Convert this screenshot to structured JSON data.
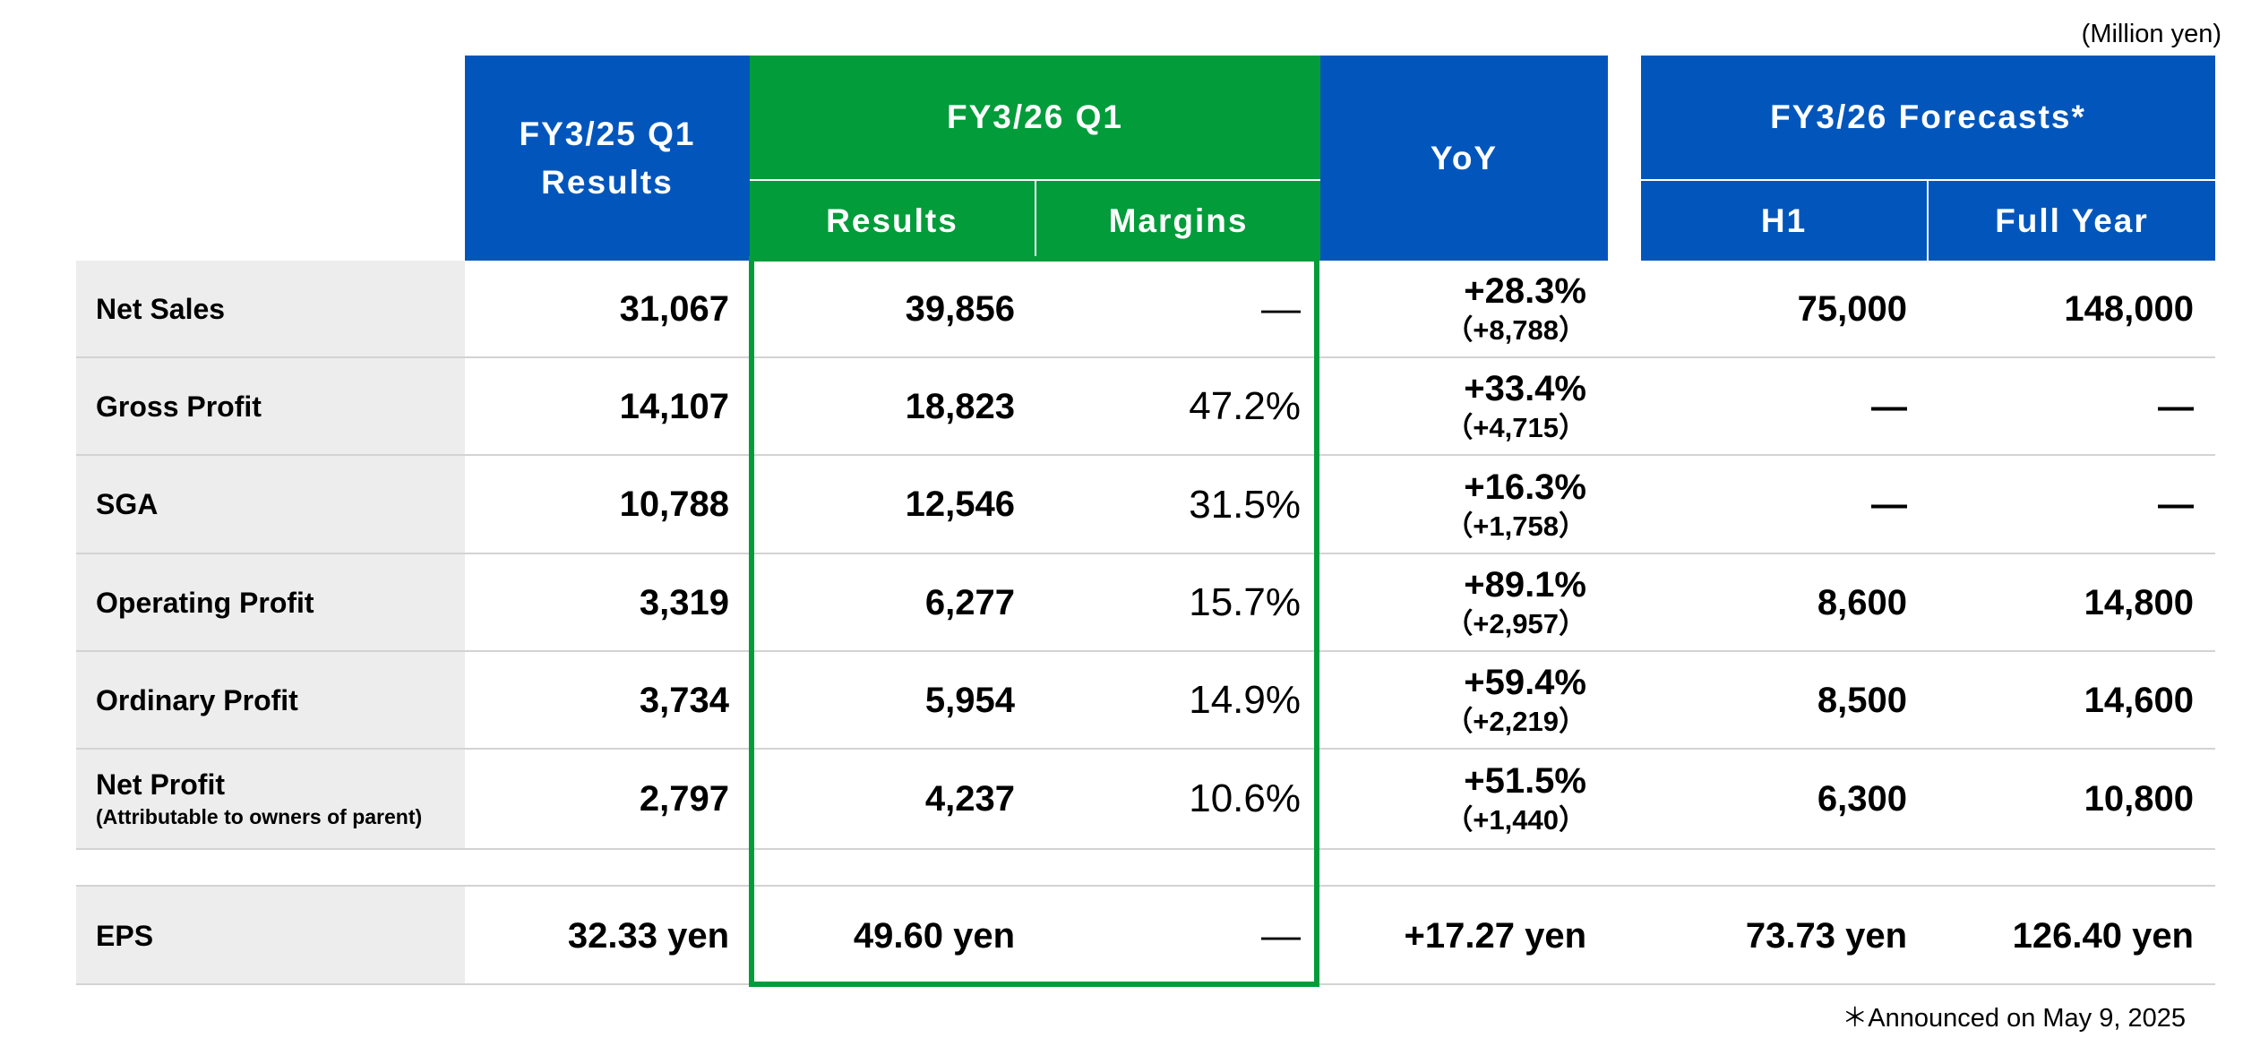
{
  "unit_note": "(Million yen)",
  "footnote": "＊Announced on May 9, 2025",
  "colors": {
    "blue_header": "#0256BB",
    "green_header": "#029C3A",
    "label_bg": "#EDEDED",
    "separator": "#D3D3D3"
  },
  "headers": {
    "prev_q1": "FY3/25 Q1 Results",
    "curr_q1": "FY3/26 Q1",
    "curr_results": "Results",
    "curr_margins": "Margins",
    "yoy": "YoY",
    "forecasts": "FY3/26 Forecasts*",
    "h1": "H1",
    "full_year": "Full Year"
  },
  "rows": [
    {
      "label": "Net Sales",
      "sublabel": "",
      "prev": "31,067",
      "results": "39,856",
      "margin": "―",
      "yoy_pct": "+28.3%",
      "yoy_diff": "（+8,788）",
      "h1": "75,000",
      "fy": "148,000"
    },
    {
      "label": "Gross Profit",
      "sublabel": "",
      "prev": "14,107",
      "results": "18,823",
      "margin": "47.2%",
      "yoy_pct": "+33.4%",
      "yoy_diff": "（+4,715）",
      "h1": "―",
      "fy": "―"
    },
    {
      "label": "SGA",
      "sublabel": "",
      "prev": "10,788",
      "results": "12,546",
      "margin": "31.5%",
      "yoy_pct": "+16.3%",
      "yoy_diff": "（+1,758）",
      "h1": "―",
      "fy": "―"
    },
    {
      "label": "Operating Profit",
      "sublabel": "",
      "prev": "3,319",
      "results": "6,277",
      "margin": "15.7%",
      "yoy_pct": "+89.1%",
      "yoy_diff": "（+2,957）",
      "h1": "8,600",
      "fy": "14,800"
    },
    {
      "label": "Ordinary Profit",
      "sublabel": "",
      "prev": "3,734",
      "results": "5,954",
      "margin": "14.9%",
      "yoy_pct": "+59.4%",
      "yoy_diff": "（+2,219）",
      "h1": "8,500",
      "fy": "14,600"
    },
    {
      "label": "Net Profit",
      "sublabel": "(Attributable to owners of parent)",
      "prev": "2,797",
      "results": "4,237",
      "margin": "10.6%",
      "yoy_pct": "+51.5%",
      "yoy_diff": "（+1,440）",
      "h1": "6,300",
      "fy": "10,800"
    }
  ],
  "eps": {
    "label": "EPS",
    "prev": "32.33 yen",
    "results": "49.60 yen",
    "margin": "―",
    "yoy": "+17.27 yen",
    "h1": "73.73 yen",
    "fy": "126.40 yen"
  }
}
